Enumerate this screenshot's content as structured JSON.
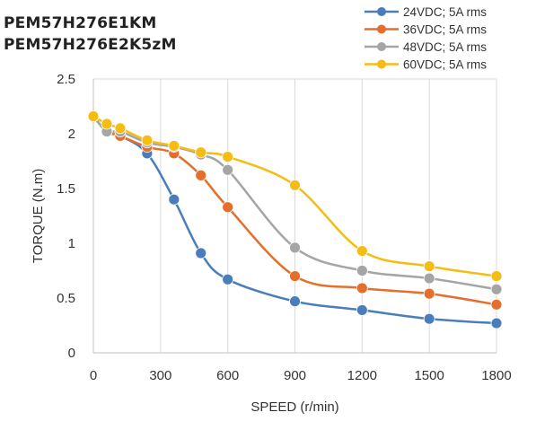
{
  "header": {
    "title_line1": "PEM57H276E1KM",
    "title_line2": "PEM57H276E2K5zM"
  },
  "chart_data": {
    "type": "line",
    "xlabel": "SPEED (r/min)",
    "ylabel": "TORQUE (N.m)",
    "x_ticks": [
      0,
      300,
      600,
      900,
      1200,
      1500,
      1800
    ],
    "y_ticks": [
      0,
      0.5,
      1,
      1.5,
      2,
      2.5
    ],
    "y_tick_labels": [
      "0",
      "0.5",
      "1",
      "1.5",
      "2",
      "2.5"
    ],
    "xlim": [
      0,
      1800
    ],
    "ylim": [
      0,
      2.5
    ],
    "grid": "vertical",
    "legend_position": "top-right",
    "series": [
      {
        "name": "24VDC; 5A rms",
        "color": "#4a7ebb",
        "points": [
          [
            0,
            2.16
          ],
          [
            60,
            2.02
          ],
          [
            120,
            1.98
          ],
          [
            240,
            1.82
          ],
          [
            360,
            1.4
          ],
          [
            480,
            0.91
          ],
          [
            600,
            0.67
          ],
          [
            900,
            0.47
          ],
          [
            1200,
            0.39
          ],
          [
            1500,
            0.31
          ],
          [
            1800,
            0.27
          ]
        ]
      },
      {
        "name": "36VDC; 5A rms",
        "color": "#e46f2c",
        "points": [
          [
            0,
            2.16
          ],
          [
            60,
            2.02
          ],
          [
            120,
            1.98
          ],
          [
            240,
            1.88
          ],
          [
            360,
            1.82
          ],
          [
            480,
            1.62
          ],
          [
            600,
            1.33
          ],
          [
            900,
            0.7
          ],
          [
            1200,
            0.59
          ],
          [
            1500,
            0.54
          ],
          [
            1800,
            0.44
          ]
        ]
      },
      {
        "name": "48VDC; 5A rms",
        "color": "#a5a5a5",
        "points": [
          [
            0,
            2.16
          ],
          [
            60,
            2.02
          ],
          [
            120,
            2.02
          ],
          [
            240,
            1.92
          ],
          [
            360,
            1.88
          ],
          [
            480,
            1.81
          ],
          [
            600,
            1.67
          ],
          [
            900,
            0.96
          ],
          [
            1200,
            0.75
          ],
          [
            1500,
            0.68
          ],
          [
            1800,
            0.58
          ]
        ]
      },
      {
        "name": "60VDC; 5A rms",
        "color": "#f5bc14",
        "points": [
          [
            0,
            2.16
          ],
          [
            60,
            2.09
          ],
          [
            120,
            2.05
          ],
          [
            240,
            1.94
          ],
          [
            360,
            1.89
          ],
          [
            480,
            1.83
          ],
          [
            600,
            1.79
          ],
          [
            900,
            1.53
          ],
          [
            1200,
            0.93
          ],
          [
            1500,
            0.79
          ],
          [
            1800,
            0.7
          ]
        ]
      }
    ]
  }
}
